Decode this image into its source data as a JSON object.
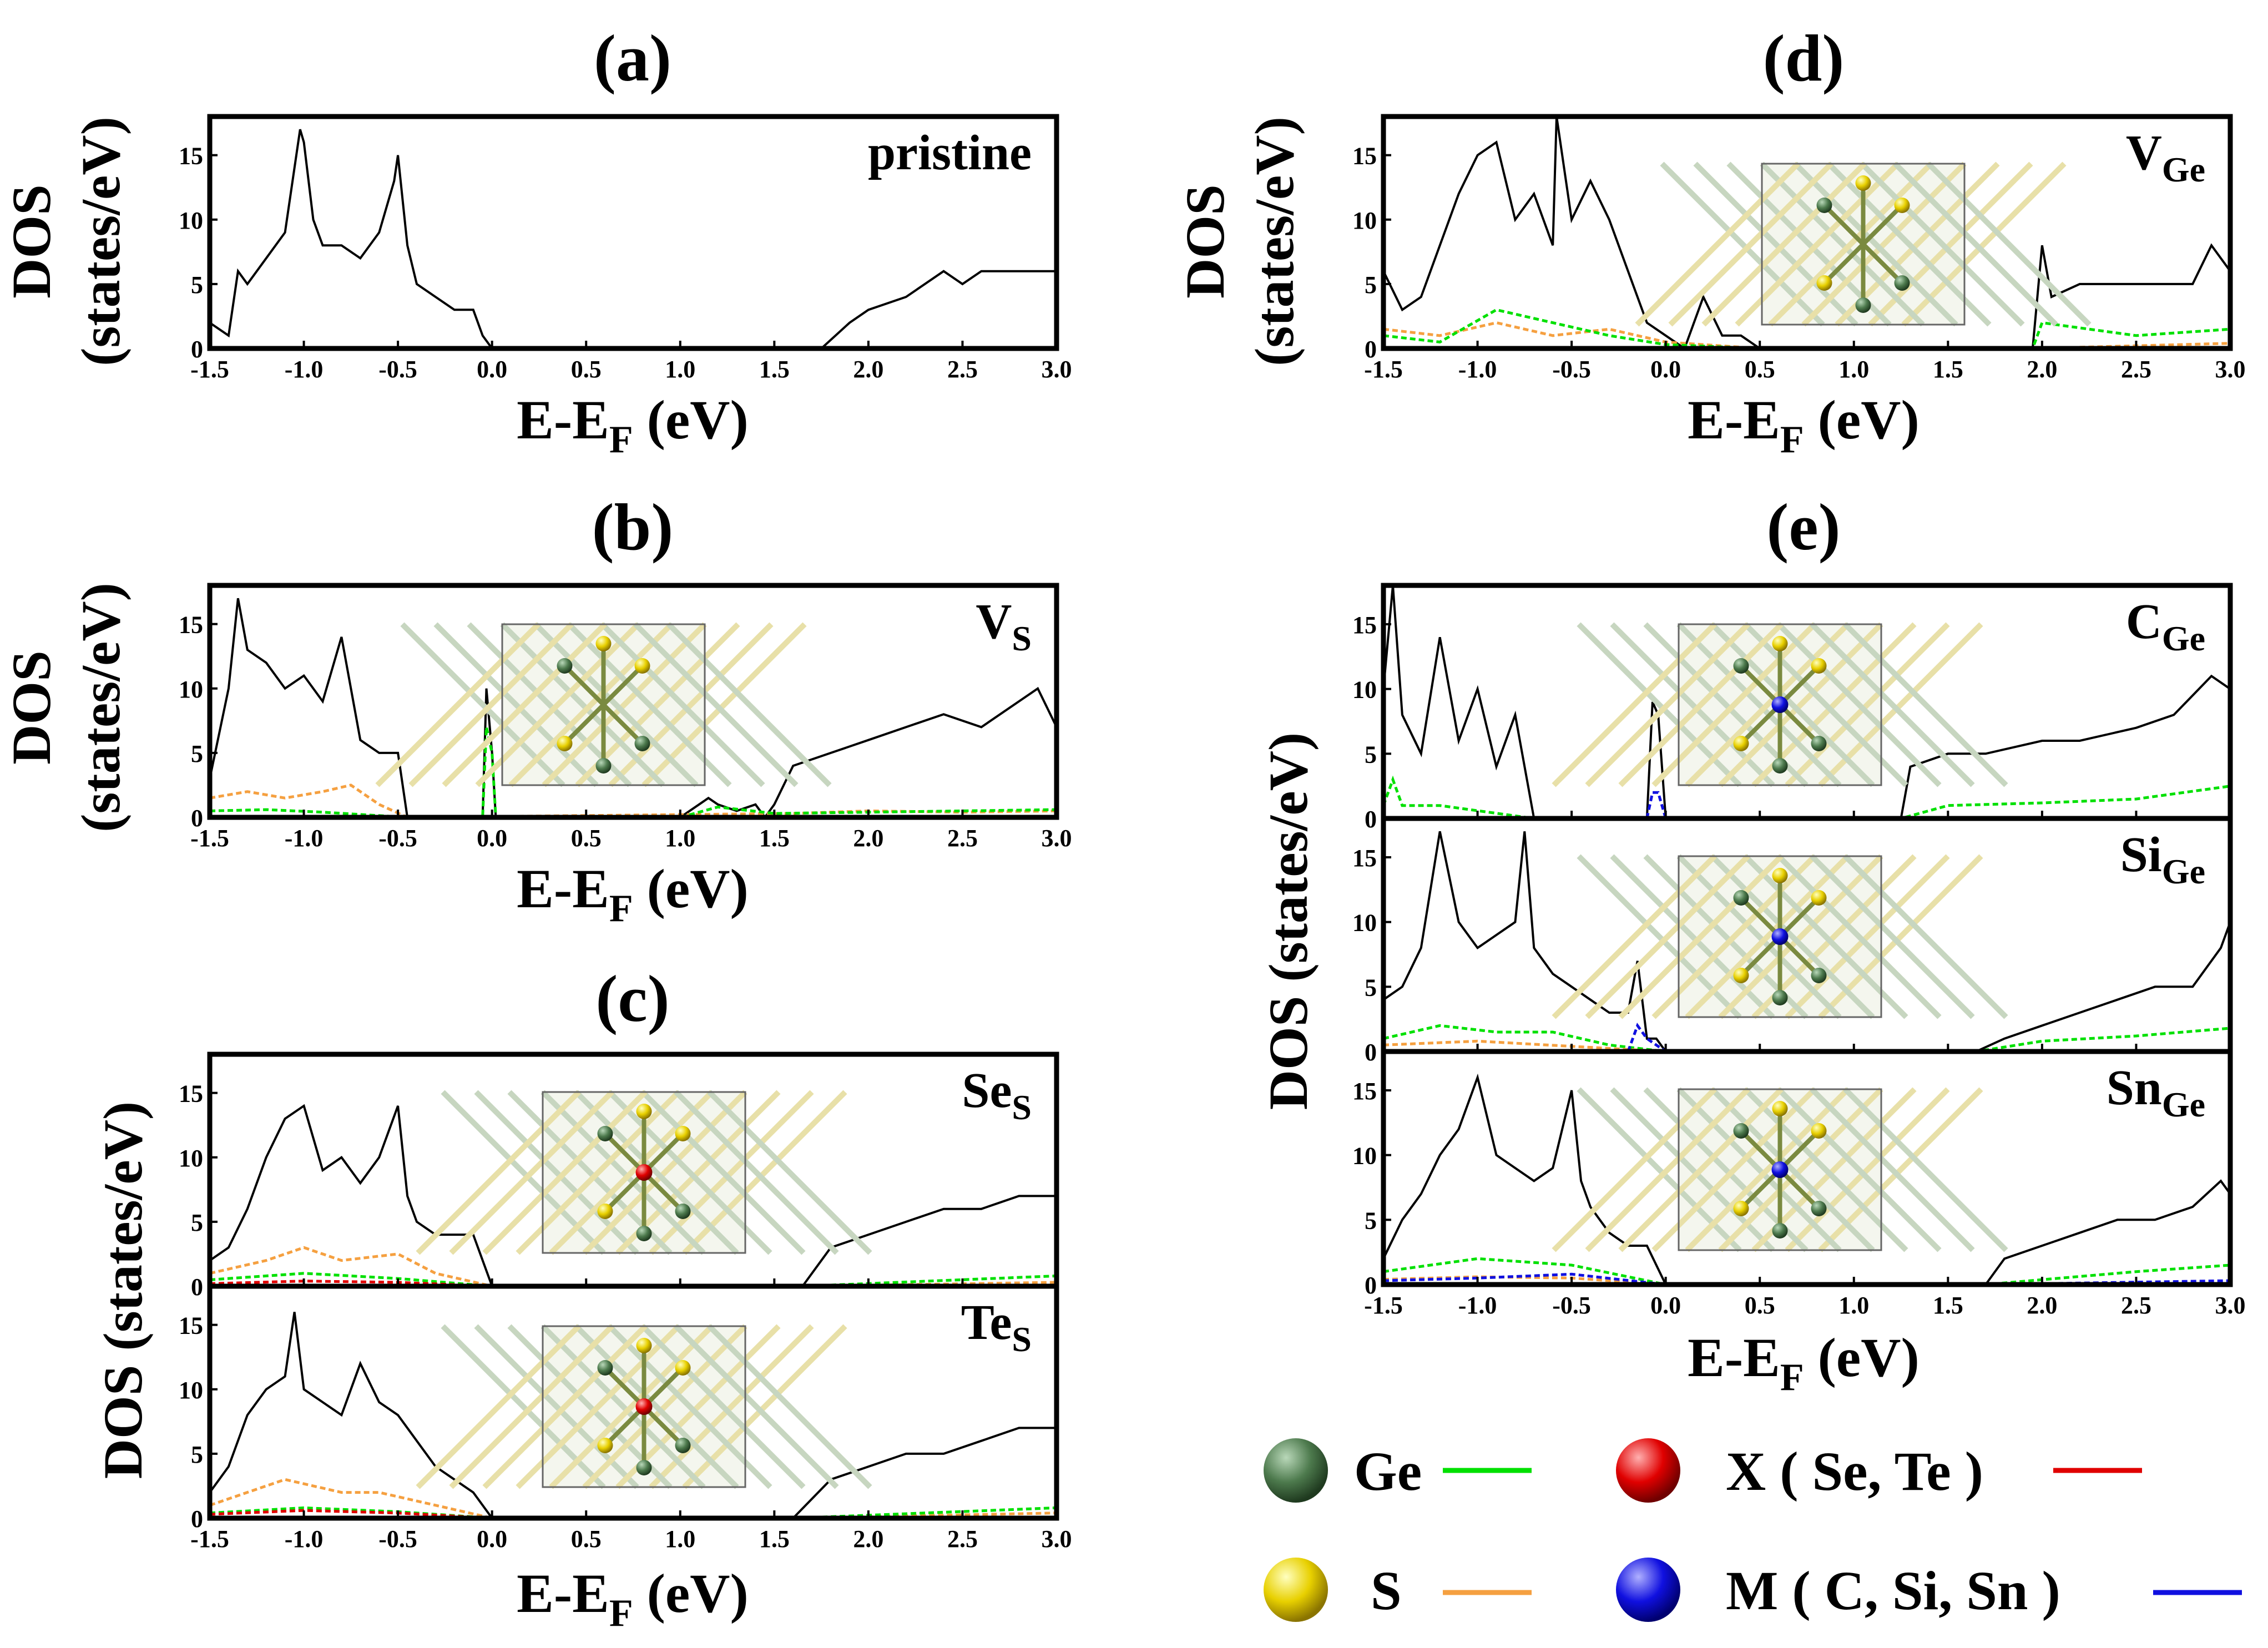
{
  "figure": {
    "xlabel_main": "E-E",
    "xlabel_sub": "F",
    "xlabel_unit": " (eV)",
    "ylabel_line1": "DOS",
    "ylabel_line2": "(states/eV)",
    "ylabel_combined": "DOS (states/eV)",
    "x_ticks": [
      "-1.5",
      "-1.0",
      "-0.5",
      "0.0",
      "0.5",
      "1.0",
      "1.5",
      "2.0",
      "2.5",
      "3.0"
    ],
    "y_ticks": [
      "0",
      "5",
      "10",
      "15"
    ]
  },
  "panel_titles": {
    "a": "(a)",
    "b": "(b)",
    "c": "(c)",
    "d": "(d)",
    "e": "(e)"
  },
  "legend": {
    "ge": {
      "label": "Ge",
      "color": "#00e000"
    },
    "s": {
      "label": "S",
      "color": "#f5a040"
    },
    "x": {
      "label": "X ( Se, Te )",
      "color": "#e00000"
    },
    "m": {
      "label": "M ( C, Si, Sn )",
      "color": "#1010e0"
    }
  },
  "chart_data": [
    {
      "id": "a",
      "type": "line",
      "title": "(a)",
      "label": "pristine",
      "label_sub": "",
      "xlim": [
        -1.5,
        3.0
      ],
      "ylim": [
        0,
        18
      ],
      "gaps": [
        [
          0.0,
          1.75
        ]
      ],
      "series": [
        {
          "name": "total",
          "color": "#000000",
          "x": [
            -1.5,
            -1.4,
            -1.35,
            -1.3,
            -1.2,
            -1.1,
            -1.02,
            -1.0,
            -0.95,
            -0.9,
            -0.8,
            -0.7,
            -0.6,
            -0.52,
            -0.5,
            -0.45,
            -0.4,
            -0.3,
            -0.2,
            -0.1,
            -0.05,
            0.0,
            1.75,
            1.9,
            2.0,
            2.2,
            2.4,
            2.5,
            2.6,
            2.8,
            3.0
          ],
          "y": [
            2,
            1,
            6,
            5,
            7,
            9,
            17,
            16,
            10,
            8,
            8,
            7,
            9,
            13,
            15,
            8,
            5,
            4,
            3,
            3,
            1,
            0,
            0,
            2,
            3,
            4,
            6,
            5,
            6,
            6,
            6
          ]
        }
      ]
    },
    {
      "id": "b",
      "type": "line",
      "title": "(b)",
      "label": "V",
      "label_sub": "S",
      "xlim": [
        -1.5,
        3.0
      ],
      "ylim": [
        0,
        18
      ],
      "gaps": [
        [
          -0.45,
          -0.1
        ],
        [
          0.05,
          1.0
        ]
      ],
      "series": [
        {
          "name": "total",
          "color": "#000000",
          "x": [
            -1.5,
            -1.4,
            -1.35,
            -1.3,
            -1.2,
            -1.1,
            -1.0,
            -0.9,
            -0.8,
            -0.7,
            -0.6,
            -0.5,
            -0.45,
            -0.05,
            -0.03,
            0.0,
            0.02,
            0.05,
            1.0,
            1.1,
            1.15,
            1.2,
            1.3,
            1.4,
            1.45,
            1.5,
            1.6,
            1.8,
            2.0,
            2.2,
            2.4,
            2.6,
            2.8,
            2.9,
            3.0
          ],
          "y": [
            3,
            10,
            17,
            13,
            12,
            10,
            11,
            9,
            14,
            6,
            5,
            5,
            0,
            0,
            10,
            5,
            0,
            0,
            0,
            1,
            1.5,
            1,
            0.5,
            1,
            0,
            1,
            4,
            5,
            6,
            7,
            8,
            7,
            9,
            10,
            7
          ]
        },
        {
          "name": "S",
          "color": "#f5a040",
          "x": [
            -1.5,
            -1.3,
            -1.1,
            -0.9,
            -0.75,
            -0.6,
            -0.45,
            1.6,
            2.0,
            2.5,
            3.0
          ],
          "y": [
            1.5,
            2,
            1.5,
            2,
            2.5,
            1,
            0,
            0.3,
            0.5,
            0.4,
            0.5
          ]
        },
        {
          "name": "Ge",
          "color": "#00e000",
          "x": [
            -1.5,
            -1.2,
            -0.9,
            -0.45,
            -0.05,
            -0.03,
            0.0,
            0.02,
            0.05,
            1.0,
            1.2,
            1.5,
            2.0,
            2.5,
            3.0
          ],
          "y": [
            0.5,
            0.6,
            0.4,
            0,
            0,
            7,
            5,
            0,
            0,
            0,
            0.8,
            0.3,
            0.4,
            0.5,
            0.6
          ]
        }
      ]
    },
    {
      "id": "c1",
      "type": "line",
      "title": "(c)",
      "label": "Se",
      "label_sub": "S",
      "xlim": [
        -1.5,
        3.0
      ],
      "ylim": [
        0,
        18
      ],
      "gaps": [
        [
          0.0,
          1.65
        ]
      ],
      "series": [
        {
          "name": "total",
          "color": "#000000",
          "x": [
            -1.5,
            -1.4,
            -1.3,
            -1.2,
            -1.1,
            -1.0,
            -0.9,
            -0.8,
            -0.7,
            -0.6,
            -0.5,
            -0.45,
            -0.4,
            -0.3,
            -0.2,
            -0.1,
            0.0,
            1.65,
            1.8,
            2.0,
            2.2,
            2.4,
            2.6,
            2.8,
            3.0
          ],
          "y": [
            2,
            3,
            6,
            10,
            13,
            14,
            9,
            10,
            8,
            10,
            14,
            7,
            5,
            4,
            4,
            4,
            0,
            0,
            3,
            4,
            5,
            6,
            6,
            7,
            7
          ]
        },
        {
          "name": "S",
          "color": "#f5a040",
          "x": [
            -1.5,
            -1.2,
            -1.0,
            -0.8,
            -0.5,
            -0.3,
            0.0,
            1.65,
            3.0
          ],
          "y": [
            1,
            2,
            3,
            2,
            2.5,
            1,
            0,
            0,
            0.3
          ]
        },
        {
          "name": "Ge",
          "color": "#00e000",
          "x": [
            -1.5,
            -1.0,
            -0.5,
            0.0,
            1.65,
            3.0
          ],
          "y": [
            0.5,
            1,
            0.6,
            0,
            0,
            0.8
          ]
        },
        {
          "name": "X",
          "color": "#e00000",
          "x": [
            -1.5,
            -1.0,
            -0.5,
            0.0
          ],
          "y": [
            0.2,
            0.4,
            0.3,
            0
          ]
        }
      ]
    },
    {
      "id": "c2",
      "type": "line",
      "title": "",
      "label": "Te",
      "label_sub": "S",
      "xlim": [
        -1.5,
        3.0
      ],
      "ylim": [
        0,
        18
      ],
      "gaps": [
        [
          0.0,
          1.6
        ]
      ],
      "series": [
        {
          "name": "total",
          "color": "#000000",
          "x": [
            -1.5,
            -1.4,
            -1.3,
            -1.2,
            -1.1,
            -1.05,
            -1.0,
            -0.9,
            -0.8,
            -0.7,
            -0.6,
            -0.5,
            -0.4,
            -0.3,
            -0.2,
            -0.1,
            0.0,
            1.6,
            1.8,
            2.0,
            2.2,
            2.4,
            2.6,
            2.8,
            3.0
          ],
          "y": [
            2,
            4,
            8,
            10,
            11,
            16,
            10,
            9,
            8,
            12,
            9,
            8,
            6,
            4,
            3,
            2,
            0,
            0,
            3,
            4,
            5,
            5,
            6,
            7,
            7
          ]
        },
        {
          "name": "S",
          "color": "#f5a040",
          "x": [
            -1.5,
            -1.1,
            -0.8,
            -0.6,
            -0.3,
            0.0,
            1.6,
            3.0
          ],
          "y": [
            1,
            3,
            2,
            2,
            1,
            0,
            0,
            0.4
          ]
        },
        {
          "name": "Ge",
          "color": "#00e000",
          "x": [
            -1.5,
            -1.0,
            -0.5,
            0.0,
            1.6,
            3.0
          ],
          "y": [
            0.4,
            0.8,
            0.5,
            0,
            0,
            0.8
          ]
        },
        {
          "name": "X",
          "color": "#e00000",
          "x": [
            -1.5,
            -1.0,
            -0.5,
            0.0
          ],
          "y": [
            0.3,
            0.6,
            0.4,
            0
          ]
        }
      ]
    },
    {
      "id": "d",
      "type": "line",
      "title": "(d)",
      "label": "V",
      "label_sub": "Ge",
      "xlim": [
        -1.5,
        3.0
      ],
      "ylim": [
        0,
        18
      ],
      "gaps": [
        [
          0.5,
          1.95
        ]
      ],
      "series": [
        {
          "name": "total",
          "color": "#000000",
          "x": [
            -1.5,
            -1.4,
            -1.3,
            -1.2,
            -1.1,
            -1.0,
            -0.9,
            -0.8,
            -0.7,
            -0.6,
            -0.58,
            -0.5,
            -0.4,
            -0.3,
            -0.2,
            -0.1,
            0.0,
            0.1,
            0.2,
            0.3,
            0.4,
            0.5,
            1.95,
            2.0,
            2.05,
            2.2,
            2.4,
            2.6,
            2.8,
            2.9,
            3.0
          ],
          "y": [
            6,
            3,
            4,
            8,
            12,
            15,
            16,
            10,
            12,
            8,
            18,
            10,
            13,
            10,
            6,
            2,
            1,
            0,
            4,
            1,
            1,
            0,
            0,
            8,
            4,
            5,
            5,
            5,
            5,
            8,
            6
          ]
        },
        {
          "name": "S",
          "color": "#f5a040",
          "x": [
            -1.5,
            -1.2,
            -0.9,
            -0.6,
            -0.3,
            0.0,
            0.5,
            1.95,
            3.0
          ],
          "y": [
            1.5,
            1,
            2,
            1,
            1.5,
            0.5,
            0,
            0,
            0.4
          ]
        },
        {
          "name": "Ge",
          "color": "#00e000",
          "x": [
            -1.5,
            -1.2,
            -0.9,
            -0.6,
            -0.3,
            0.0,
            0.5,
            1.95,
            2.0,
            2.5,
            3.0
          ],
          "y": [
            1,
            0.5,
            3,
            2,
            1,
            0.3,
            0,
            0,
            2,
            1,
            1.5
          ]
        }
      ]
    },
    {
      "id": "e1",
      "type": "line",
      "title": "(e)",
      "label": "C",
      "label_sub": "Ge",
      "xlim": [
        -1.5,
        3.0
      ],
      "ylim": [
        0,
        18
      ],
      "gaps": [
        [
          -0.7,
          -0.1
        ],
        [
          0.0,
          1.25
        ]
      ],
      "series": [
        {
          "name": "total",
          "color": "#000000",
          "x": [
            -1.5,
            -1.45,
            -1.4,
            -1.3,
            -1.2,
            -1.1,
            -1.0,
            -0.9,
            -0.8,
            -0.7,
            -0.1,
            -0.07,
            -0.04,
            0.0,
            1.25,
            1.3,
            1.5,
            1.7,
            2.0,
            2.2,
            2.5,
            2.7,
            2.9,
            3.0
          ],
          "y": [
            10,
            18,
            8,
            5,
            14,
            6,
            10,
            4,
            8,
            0,
            0,
            9,
            8,
            0,
            0,
            4,
            5,
            5,
            6,
            6,
            7,
            8,
            11,
            10
          ]
        },
        {
          "name": "Ge",
          "color": "#00e000",
          "x": [
            -1.5,
            -1.45,
            -1.4,
            -1.2,
            -0.7,
            1.25,
            1.5,
            2.0,
            2.5,
            3.0
          ],
          "y": [
            1,
            3,
            1,
            1,
            0,
            0,
            1,
            1.2,
            1.5,
            2.5
          ]
        },
        {
          "name": "M",
          "color": "#1010e0",
          "x": [
            -0.1,
            -0.07,
            -0.04,
            0.0
          ],
          "y": [
            0,
            2,
            2,
            0
          ]
        }
      ]
    },
    {
      "id": "e2",
      "type": "line",
      "title": "",
      "label": "Si",
      "label_sub": "Ge",
      "xlim": [
        -1.5,
        3.0
      ],
      "ylim": [
        0,
        18
      ],
      "gaps": [
        [
          0.0,
          1.65
        ]
      ],
      "series": [
        {
          "name": "total",
          "color": "#000000",
          "x": [
            -1.5,
            -1.4,
            -1.3,
            -1.2,
            -1.1,
            -1.0,
            -0.9,
            -0.8,
            -0.75,
            -0.7,
            -0.6,
            -0.5,
            -0.4,
            -0.3,
            -0.2,
            -0.15,
            -0.1,
            -0.05,
            0.0,
            1.65,
            1.8,
            2.0,
            2.2,
            2.4,
            2.6,
            2.8,
            2.95,
            3.0
          ],
          "y": [
            4,
            5,
            8,
            17,
            10,
            8,
            9,
            10,
            17,
            8,
            6,
            5,
            4,
            3,
            3,
            7,
            1,
            1,
            0,
            0,
            1,
            2,
            3,
            4,
            5,
            5,
            8,
            10
          ]
        },
        {
          "name": "Ge",
          "color": "#00e000",
          "x": [
            -1.5,
            -1.2,
            -0.9,
            -0.6,
            -0.3,
            0.0,
            1.65,
            2.0,
            2.5,
            3.0
          ],
          "y": [
            1,
            2,
            1.5,
            1.5,
            0.5,
            0,
            0,
            0.8,
            1.2,
            1.8
          ]
        },
        {
          "name": "S",
          "color": "#f5a040",
          "x": [
            -1.5,
            -1.0,
            -0.5,
            0.0
          ],
          "y": [
            0.5,
            0.8,
            0.4,
            0
          ]
        },
        {
          "name": "M",
          "color": "#1010e0",
          "x": [
            -0.2,
            -0.15,
            -0.1,
            0.0
          ],
          "y": [
            0,
            2,
            1,
            0
          ]
        }
      ]
    },
    {
      "id": "e3",
      "type": "line",
      "title": "",
      "label": "Sn",
      "label_sub": "Ge",
      "xlim": [
        -1.5,
        3.0
      ],
      "ylim": [
        0,
        18
      ],
      "gaps": [
        [
          0.0,
          1.7
        ]
      ],
      "series": [
        {
          "name": "total",
          "color": "#000000",
          "x": [
            -1.5,
            -1.4,
            -1.3,
            -1.2,
            -1.1,
            -1.0,
            -0.9,
            -0.8,
            -0.7,
            -0.6,
            -0.5,
            -0.45,
            -0.4,
            -0.3,
            -0.2,
            -0.1,
            0.0,
            1.7,
            1.8,
            2.0,
            2.2,
            2.4,
            2.6,
            2.8,
            2.95,
            3.0
          ],
          "y": [
            2,
            5,
            7,
            10,
            12,
            16,
            10,
            9,
            8,
            9,
            15,
            8,
            6,
            4,
            3,
            3,
            0,
            0,
            2,
            3,
            4,
            5,
            5,
            6,
            8,
            7
          ]
        },
        {
          "name": "Ge",
          "color": "#00e000",
          "x": [
            -1.5,
            -1.0,
            -0.5,
            0.0,
            1.7,
            2.5,
            3.0
          ],
          "y": [
            1,
            2,
            1.5,
            0,
            0,
            1,
            1.5
          ]
        },
        {
          "name": "S",
          "color": "#f5a040",
          "x": [
            -1.5,
            -1.0,
            -0.5,
            0.0
          ],
          "y": [
            0.4,
            0.6,
            0.5,
            0
          ]
        },
        {
          "name": "M",
          "color": "#1010e0",
          "x": [
            -1.5,
            -1.0,
            -0.5,
            0.0,
            1.7,
            3.0
          ],
          "y": [
            0.3,
            0.5,
            0.8,
            0,
            0,
            0.3
          ]
        }
      ]
    }
  ]
}
